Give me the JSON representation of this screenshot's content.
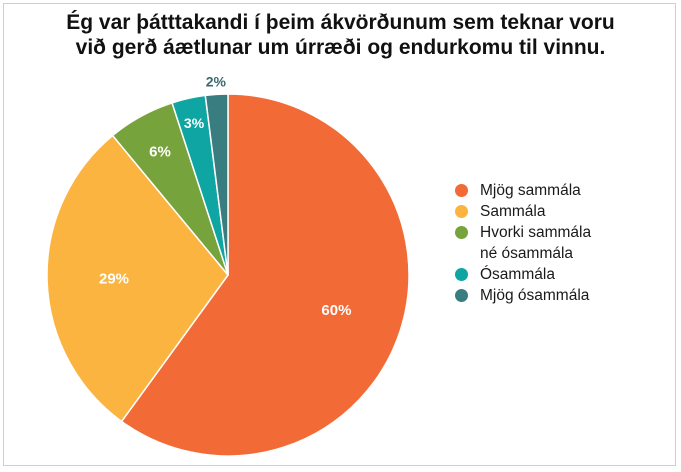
{
  "chart_data": {
    "type": "pie",
    "title_lines": [
      "Ég var þátttakandi í þeim ákvörðunum sem teknar voru",
      "við gerð áætlunar um úrræði og endurkomu til vinnu."
    ],
    "categories": [
      "Mjög sammála",
      "Sammála",
      "Hvorki sammála né ósammála",
      "Ósammála",
      "Mjög ósammála"
    ],
    "legend_labels": [
      [
        "Mjög sammála"
      ],
      [
        "Sammála"
      ],
      [
        "Hvorki sammála",
        "né ósammála"
      ],
      [
        "Ósammála"
      ],
      [
        "Mjög ósammála"
      ]
    ],
    "values": [
      60,
      29,
      6,
      3,
      2
    ],
    "data_labels": [
      "60%",
      "29%",
      "6%",
      "3%",
      "2%"
    ],
    "colors": [
      "#f26a36",
      "#fbb43f",
      "#76a33b",
      "#0fa5a2",
      "#3a7d80"
    ],
    "label_colors": [
      "#ffffff",
      "#ffffff",
      "#ffffff",
      "#ffffff",
      "#3a6a6e"
    ],
    "legend_position": "right"
  }
}
